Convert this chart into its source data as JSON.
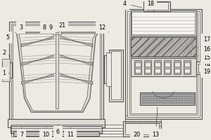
{
  "bg_color": "#ede9e3",
  "lc": "#555555",
  "fw": "#dedad4",
  "fmed": "#b8b4ae",
  "fhatch": "#c0bdb8",
  "white": "#f5f3f0",
  "label_fontsize": 5.8
}
